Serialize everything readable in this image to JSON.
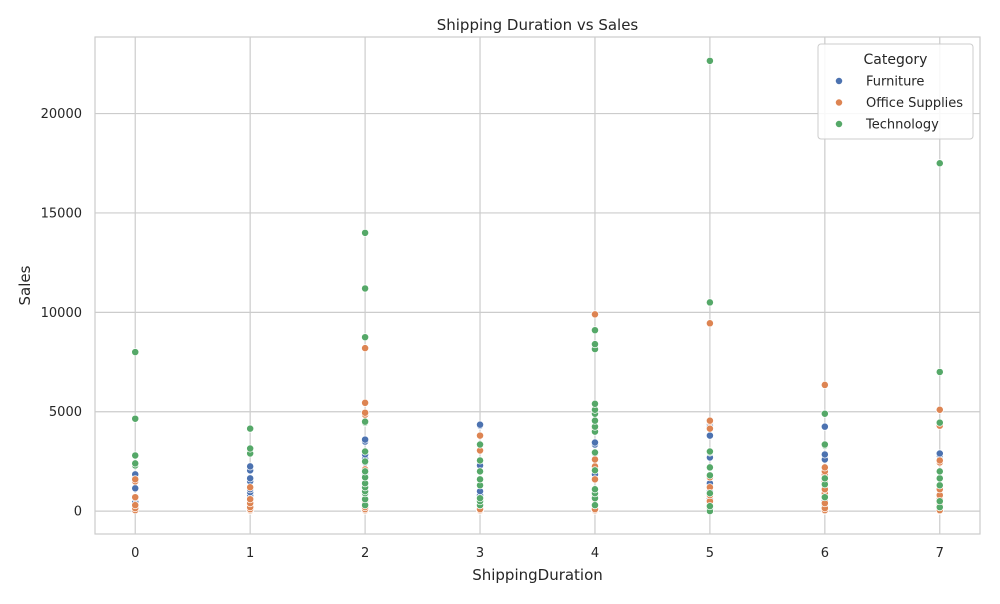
{
  "chart_data": {
    "type": "scatter",
    "title": "Shipping Duration vs Sales",
    "xlabel": "ShippingDuration",
    "ylabel": "Sales",
    "xlim": [
      -0.35,
      7.35
    ],
    "ylim": [
      -1150,
      23850
    ],
    "xticks": [
      0,
      1,
      2,
      3,
      4,
      5,
      6,
      7
    ],
    "yticks": [
      0,
      5000,
      10000,
      15000,
      20000
    ],
    "grid": true,
    "legend": {
      "title": "Category",
      "placement": "top-right"
    },
    "series": [
      {
        "name": "Furniture",
        "color": "#4c72b0",
        "points": [
          [
            0,
            150
          ],
          [
            0,
            250
          ],
          [
            0,
            480
          ],
          [
            0,
            650
          ],
          [
            0,
            720
          ],
          [
            0,
            1150
          ],
          [
            0,
            1750
          ],
          [
            0,
            1850
          ],
          [
            1,
            200
          ],
          [
            1,
            350
          ],
          [
            1,
            500
          ],
          [
            1,
            650
          ],
          [
            1,
            800
          ],
          [
            1,
            950
          ],
          [
            1,
            1100
          ],
          [
            1,
            1500
          ],
          [
            1,
            1650
          ],
          [
            1,
            2050
          ],
          [
            1,
            2250
          ],
          [
            2,
            150
          ],
          [
            2,
            300
          ],
          [
            2,
            450
          ],
          [
            2,
            600
          ],
          [
            2,
            850
          ],
          [
            2,
            1350
          ],
          [
            2,
            1900
          ],
          [
            2,
            2450
          ],
          [
            2,
            2650
          ],
          [
            2,
            2850
          ],
          [
            2,
            3500
          ],
          [
            2,
            3600
          ],
          [
            3,
            150
          ],
          [
            3,
            300
          ],
          [
            3,
            550
          ],
          [
            3,
            800
          ],
          [
            3,
            1000
          ],
          [
            3,
            1600
          ],
          [
            3,
            2300
          ],
          [
            3,
            4300
          ],
          [
            3,
            4350
          ],
          [
            4,
            100
          ],
          [
            4,
            300
          ],
          [
            4,
            600
          ],
          [
            4,
            900
          ],
          [
            4,
            1850
          ],
          [
            4,
            2900
          ],
          [
            4,
            3350
          ],
          [
            4,
            3450
          ],
          [
            5,
            100
          ],
          [
            5,
            350
          ],
          [
            5,
            600
          ],
          [
            5,
            1000
          ],
          [
            5,
            1400
          ],
          [
            5,
            2700
          ],
          [
            5,
            3800
          ],
          [
            5,
            4300
          ],
          [
            5,
            4400
          ],
          [
            6,
            100
          ],
          [
            6,
            300
          ],
          [
            6,
            500
          ],
          [
            6,
            750
          ],
          [
            6,
            900
          ],
          [
            6,
            1300
          ],
          [
            6,
            1700
          ],
          [
            6,
            2150
          ],
          [
            6,
            2600
          ],
          [
            6,
            2850
          ],
          [
            6,
            4250
          ],
          [
            7,
            100
          ],
          [
            7,
            300
          ],
          [
            7,
            500
          ],
          [
            7,
            700
          ],
          [
            7,
            850
          ],
          [
            7,
            2800
          ],
          [
            7,
            2900
          ]
        ]
      },
      {
        "name": "Office Supplies",
        "color": "#dd8452",
        "points": [
          [
            0,
            50
          ],
          [
            0,
            150
          ],
          [
            0,
            300
          ],
          [
            0,
            700
          ],
          [
            0,
            1500
          ],
          [
            0,
            1600
          ],
          [
            1,
            20
          ],
          [
            1,
            50
          ],
          [
            1,
            100
          ],
          [
            1,
            200
          ],
          [
            1,
            400
          ],
          [
            1,
            600
          ],
          [
            1,
            1200
          ],
          [
            2,
            20
          ],
          [
            2,
            50
          ],
          [
            2,
            100
          ],
          [
            2,
            200
          ],
          [
            2,
            500
          ],
          [
            2,
            2000
          ],
          [
            2,
            2100
          ],
          [
            2,
            4850
          ],
          [
            2,
            4950
          ],
          [
            2,
            5450
          ],
          [
            2,
            8200
          ],
          [
            3,
            20
          ],
          [
            3,
            50
          ],
          [
            3,
            100
          ],
          [
            3,
            300
          ],
          [
            3,
            3050
          ],
          [
            3,
            3800
          ],
          [
            4,
            20
          ],
          [
            4,
            50
          ],
          [
            4,
            100
          ],
          [
            4,
            300
          ],
          [
            4,
            600
          ],
          [
            4,
            800
          ],
          [
            4,
            1600
          ],
          [
            4,
            2100
          ],
          [
            4,
            2250
          ],
          [
            4,
            2600
          ],
          [
            4,
            4150
          ],
          [
            4,
            9900
          ],
          [
            5,
            20
          ],
          [
            5,
            100
          ],
          [
            5,
            300
          ],
          [
            5,
            500
          ],
          [
            5,
            800
          ],
          [
            5,
            1200
          ],
          [
            5,
            1700
          ],
          [
            5,
            4150
          ],
          [
            5,
            4500
          ],
          [
            5,
            4550
          ],
          [
            5,
            9450
          ],
          [
            6,
            20
          ],
          [
            6,
            50
          ],
          [
            6,
            150
          ],
          [
            6,
            400
          ],
          [
            6,
            900
          ],
          [
            6,
            1100
          ],
          [
            6,
            1500
          ],
          [
            6,
            1850
          ],
          [
            6,
            2000
          ],
          [
            6,
            2200
          ],
          [
            6,
            6350
          ],
          [
            7,
            20
          ],
          [
            7,
            50
          ],
          [
            7,
            200
          ],
          [
            7,
            400
          ],
          [
            7,
            600
          ],
          [
            7,
            800
          ],
          [
            7,
            1100
          ],
          [
            7,
            2450
          ],
          [
            7,
            2550
          ],
          [
            7,
            4300
          ],
          [
            7,
            5100
          ]
        ]
      },
      {
        "name": "Technology",
        "color": "#55a868",
        "points": [
          [
            0,
            2300
          ],
          [
            0,
            2400
          ],
          [
            0,
            2800
          ],
          [
            0,
            4650
          ],
          [
            0,
            8000
          ],
          [
            1,
            2900
          ],
          [
            1,
            3150
          ],
          [
            1,
            4150
          ],
          [
            2,
            300
          ],
          [
            2,
            600
          ],
          [
            2,
            900
          ],
          [
            2,
            1000
          ],
          [
            2,
            1200
          ],
          [
            2,
            1400
          ],
          [
            2,
            1700
          ],
          [
            2,
            2000
          ],
          [
            2,
            2500
          ],
          [
            2,
            3000
          ],
          [
            2,
            4450
          ],
          [
            2,
            4500
          ],
          [
            2,
            8750
          ],
          [
            2,
            11200
          ],
          [
            2,
            14000
          ],
          [
            3,
            300
          ],
          [
            3,
            500
          ],
          [
            3,
            650
          ],
          [
            3,
            1300
          ],
          [
            3,
            1600
          ],
          [
            3,
            2000
          ],
          [
            3,
            2550
          ],
          [
            3,
            3350
          ],
          [
            4,
            300
          ],
          [
            4,
            650
          ],
          [
            4,
            900
          ],
          [
            4,
            1100
          ],
          [
            4,
            2050
          ],
          [
            4,
            2950
          ],
          [
            4,
            4000
          ],
          [
            4,
            4250
          ],
          [
            4,
            4550
          ],
          [
            4,
            4900
          ],
          [
            4,
            5100
          ],
          [
            4,
            5400
          ],
          [
            4,
            8150
          ],
          [
            4,
            8400
          ],
          [
            4,
            9100
          ],
          [
            5,
            0
          ],
          [
            5,
            250
          ],
          [
            5,
            900
          ],
          [
            5,
            1800
          ],
          [
            5,
            2200
          ],
          [
            5,
            2950
          ],
          [
            5,
            3000
          ],
          [
            5,
            10500
          ],
          [
            5,
            22650
          ],
          [
            6,
            700
          ],
          [
            6,
            1350
          ],
          [
            6,
            1650
          ],
          [
            6,
            3300
          ],
          [
            6,
            3350
          ],
          [
            6,
            4900
          ],
          [
            7,
            200
          ],
          [
            7,
            500
          ],
          [
            7,
            1300
          ],
          [
            7,
            1650
          ],
          [
            7,
            2000
          ],
          [
            7,
            4450
          ],
          [
            7,
            7000
          ],
          [
            7,
            17500
          ]
        ]
      }
    ]
  }
}
